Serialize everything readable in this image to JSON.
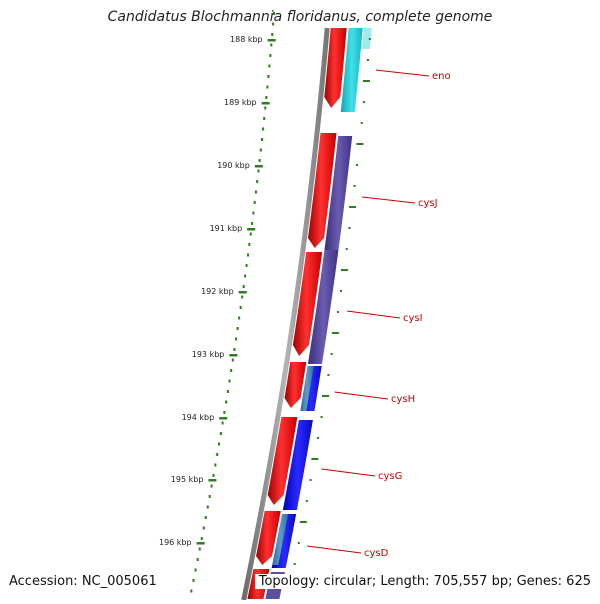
{
  "title": "Candidatus Blochmannia floridanus, complete genome",
  "accession": "Accession: NC_005061",
  "summary": "Topology: circular; Length: 705,557 bp; Genes: 625",
  "scale": {
    "ticks": [
      "188 kbp",
      "189 kbp",
      "190 kbp",
      "191 kbp",
      "192 kbp",
      "193 kbp",
      "194 kbp",
      "195 kbp",
      "196 kbp"
    ]
  },
  "genes": [
    "eno",
    "cysJ",
    "cysI",
    "cysH",
    "cysG",
    "cysD"
  ],
  "colors": {
    "tick": "#2e7d1e",
    "backbone": "#888888",
    "forward_track": "#ff0000",
    "label": "#cc0000",
    "eno": "#1ec8d2",
    "cysJ": "#4a3d8f",
    "cysI": "#4a3d8f",
    "cysH": "#1010e0",
    "cysG": "#1010e0",
    "cysD": "#1010e0",
    "cysH_helper": "#3a7ab0"
  }
}
